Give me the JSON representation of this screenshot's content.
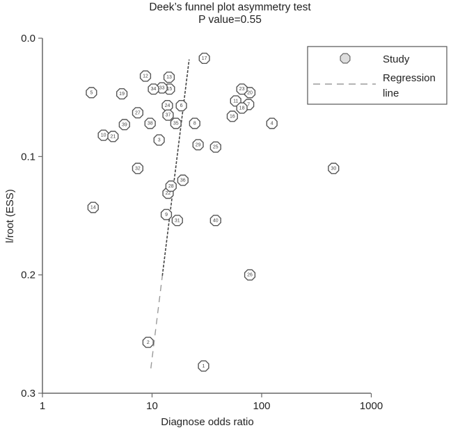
{
  "chart_data": {
    "type": "scatter",
    "title": "Deek's funnel plot asymmetry test",
    "subtitle": "P value=0.55",
    "xlabel": "Diagnose odds ratio",
    "ylabel": "l/root (ESS)",
    "x_scale": "log",
    "xlim": [
      1,
      1000
    ],
    "ylim": [
      0.0,
      0.3
    ],
    "y_inverted": true,
    "x_ticks": [
      1,
      10,
      100,
      1000
    ],
    "x_tick_labels": [
      "1",
      "10",
      "100",
      "1000"
    ],
    "y_ticks": [
      0.0,
      0.1,
      0.2,
      0.3
    ],
    "y_tick_labels": [
      "0.0",
      "0.1",
      "0.2",
      "0.3"
    ],
    "grid": false,
    "legend": {
      "position": "top-right",
      "entries": [
        {
          "label": "Study",
          "symbol": "circle"
        },
        {
          "label": "Regression line",
          "label_lines": [
            "Regression",
            "line"
          ],
          "symbol": "dashed-line"
        }
      ]
    },
    "series": [
      {
        "name": "Study",
        "points": [
          {
            "id": "1",
            "x": 29.5,
            "y": 0.277
          },
          {
            "id": "2",
            "x": 9.2,
            "y": 0.257
          },
          {
            "id": "3",
            "x": 11.6,
            "y": 0.086
          },
          {
            "id": "4",
            "x": 124,
            "y": 0.072
          },
          {
            "id": "5",
            "x": 2.8,
            "y": 0.046
          },
          {
            "id": "6",
            "x": 18.5,
            "y": 0.057
          },
          {
            "id": "7",
            "x": 76,
            "y": 0.056
          },
          {
            "id": "8",
            "x": 24.5,
            "y": 0.072
          },
          {
            "id": "9",
            "x": 13.5,
            "y": 0.149
          },
          {
            "id": "10",
            "x": 3.6,
            "y": 0.082
          },
          {
            "id": "11",
            "x": 58,
            "y": 0.053
          },
          {
            "id": "12",
            "x": 8.7,
            "y": 0.032
          },
          {
            "id": "13",
            "x": 14.3,
            "y": 0.033
          },
          {
            "id": "14",
            "x": 2.9,
            "y": 0.143
          },
          {
            "id": "15",
            "x": 14.4,
            "y": 0.043
          },
          {
            "id": "16",
            "x": 54,
            "y": 0.066
          },
          {
            "id": "17",
            "x": 30,
            "y": 0.017
          },
          {
            "id": "18",
            "x": 66,
            "y": 0.059
          },
          {
            "id": "19",
            "x": 5.3,
            "y": 0.047
          },
          {
            "id": "20",
            "x": 78,
            "y": 0.046
          },
          {
            "id": "21",
            "x": 4.4,
            "y": 0.083
          },
          {
            "id": "22",
            "x": 14.0,
            "y": 0.131
          },
          {
            "id": "23",
            "x": 66,
            "y": 0.043
          },
          {
            "id": "24",
            "x": 13.8,
            "y": 0.057
          },
          {
            "id": "25",
            "x": 38,
            "y": 0.092
          },
          {
            "id": "26",
            "x": 78,
            "y": 0.2
          },
          {
            "id": "27",
            "x": 7.4,
            "y": 0.063
          },
          {
            "id": "28",
            "x": 14.9,
            "y": 0.125
          },
          {
            "id": "29",
            "x": 26.3,
            "y": 0.09
          },
          {
            "id": "30",
            "x": 453,
            "y": 0.11
          },
          {
            "id": "31",
            "x": 17.0,
            "y": 0.154
          },
          {
            "id": "32",
            "x": 7.4,
            "y": 0.11
          },
          {
            "id": "33",
            "x": 12.3,
            "y": 0.042
          },
          {
            "id": "34",
            "x": 10.3,
            "y": 0.043
          },
          {
            "id": "35",
            "x": 16.5,
            "y": 0.072
          },
          {
            "id": "36",
            "x": 19.1,
            "y": 0.12
          },
          {
            "id": "37",
            "x": 14.0,
            "y": 0.065
          },
          {
            "id": "38",
            "x": 9.6,
            "y": 0.072
          },
          {
            "id": "39",
            "x": 5.6,
            "y": 0.073
          },
          {
            "id": "40",
            "x": 38,
            "y": 0.154
          }
        ]
      },
      {
        "name": "Regression line",
        "type": "line",
        "points": [
          {
            "x": 9.75,
            "y": 0.279
          },
          {
            "x": 21.8,
            "y": 0.018
          }
        ]
      }
    ]
  },
  "title_lines": [
    "Deek’s funnel plot asymmetry test",
    "P value=0.55"
  ],
  "axes": {
    "x_title": "Diagnose odds ratio",
    "y_title": "l/root (ESS)",
    "x_tick_labels": [
      "1",
      "10",
      "100",
      "1000"
    ],
    "y_tick_labels": [
      "0.0",
      "0.1",
      "0.2",
      "0.3"
    ]
  },
  "legend": {
    "study_label": "Study",
    "regression_label_line1": "Regression",
    "regression_label_line2": "line"
  },
  "colors": {
    "axis": "#555555",
    "marker_stroke": "#555555",
    "marker_fill": "#ffffff",
    "regression_dark": "#444444",
    "regression_light": "#999999",
    "legend_marker_fill": "#dddddd"
  }
}
